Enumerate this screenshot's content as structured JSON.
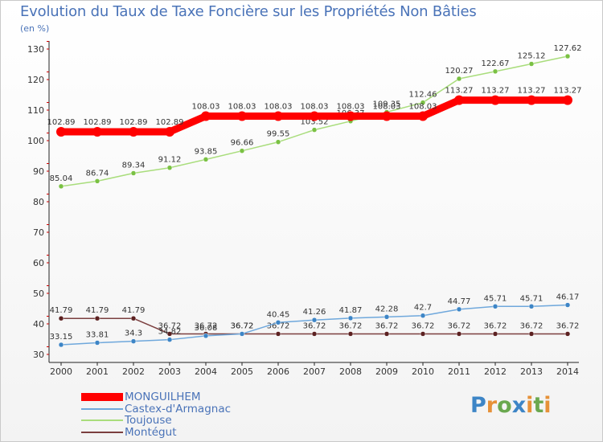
{
  "title": "Evolution du Taux de Taxe Foncière sur les Propriétés Non Bâties",
  "unit_label": "(en %)",
  "logo_text": "Proxiti",
  "chart_data": {
    "type": "line",
    "title": "Evolution du Taux de Taxe Foncière sur les Propriétés Non Bâties",
    "ylabel": "(en %)",
    "xlabel": "",
    "ylim": [
      30,
      130
    ],
    "yticks": [
      30,
      40,
      50,
      60,
      70,
      80,
      90,
      100,
      110,
      120,
      130
    ],
    "grid": false,
    "legend_position": "bottom-left",
    "x": [
      "2000",
      "2001",
      "2002",
      "2003",
      "2004",
      "2005",
      "2006",
      "2007",
      "2008",
      "2009",
      "2010",
      "2011",
      "2012",
      "2013",
      "2014"
    ],
    "series": [
      {
        "name": "MONGUILHEM",
        "color": "#ff0000",
        "point_color": "#ff0000",
        "values": [
          102.89,
          102.89,
          102.89,
          102.89,
          108.03,
          108.03,
          108.03,
          108.03,
          108.03,
          108.03,
          108.03,
          113.27,
          113.27,
          113.27,
          113.27
        ],
        "labels": [
          "102.89",
          "102.89",
          "102.89",
          "102.89",
          "108.03",
          "108.03",
          "108.03",
          "108.03",
          "108.03",
          "108.03",
          "108.03",
          "113.27",
          "113.27",
          "113.27",
          "113.27"
        ]
      },
      {
        "name": "Castex-d'Armagnac",
        "color": "#6fa8dc",
        "point_color": "#3d85c6",
        "values": [
          33.15,
          33.81,
          34.3,
          34.82,
          36.08,
          36.72,
          40.45,
          41.26,
          41.87,
          42.28,
          42.7,
          44.77,
          45.71,
          45.71,
          46.17
        ],
        "labels": [
          "33.15",
          "33.81",
          "34.3",
          "34.82",
          "36.08",
          "36.72",
          "40.45",
          "41.26",
          "41.87",
          "42.28",
          "42.7",
          "44.77",
          "45.71",
          "45.71",
          "46.17"
        ]
      },
      {
        "name": "Toujouse",
        "color": "#a9dd7c",
        "point_color": "#7ac143",
        "values": [
          85.04,
          86.74,
          89.34,
          91.12,
          93.85,
          96.66,
          99.55,
          103.52,
          106.37,
          109.35,
          112.46,
          120.27,
          122.67,
          125.12,
          127.62
        ],
        "labels": [
          "85.04",
          "86.74",
          "89.34",
          "91.12",
          "93.85",
          "96.66",
          "99.55",
          "103.52",
          "106.37",
          "109.35",
          "112.46",
          "120.27",
          "122.67",
          "125.12",
          "127.62"
        ]
      },
      {
        "name": "Montégut",
        "color": "#7b3f3f",
        "point_color": "#5c2121",
        "values": [
          41.79,
          41.79,
          41.79,
          36.72,
          36.72,
          36.72,
          36.72,
          36.72,
          36.72,
          36.72,
          36.72,
          36.72,
          36.72,
          36.72,
          36.72
        ],
        "labels": [
          "41.79",
          "41.79",
          "41.79",
          "36.72",
          "36.72",
          "36.72",
          "36.72",
          "36.72",
          "36.72",
          "36.72",
          "36.72",
          "36.72",
          "36.72",
          "36.72",
          "36.72"
        ]
      }
    ]
  }
}
